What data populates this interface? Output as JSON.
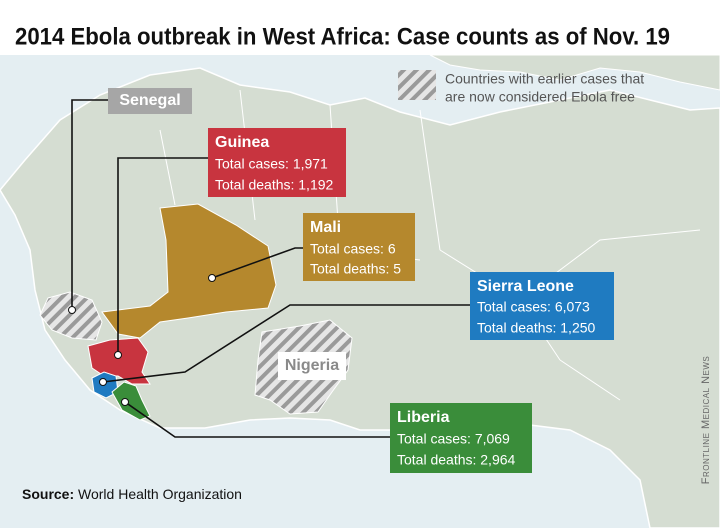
{
  "title": "2014 Ebola outbreak in West Africa: Case counts as of Nov. 19",
  "legend": {
    "lines": [
      "Countries with earlier cases that",
      "are now considered Ebola free"
    ]
  },
  "countries": [
    {
      "name": "Guinea",
      "cases": "Total cases: 1,971",
      "deaths": "Total deaths: 1,192"
    },
    {
      "name": "Mali",
      "cases": "Total cases: 6",
      "deaths": "Total deaths: 5"
    },
    {
      "name": "Sierra Leone",
      "cases": "Total cases: 6,073",
      "deaths": "Total deaths: 1,250"
    },
    {
      "name": "Liberia",
      "cases": "Total cases: 7,069",
      "deaths": "Total deaths: 2,964"
    }
  ],
  "ebola_free": [
    "Senegal",
    "Nigeria"
  ],
  "source": {
    "label": "Source:",
    "text": "World Health Organization"
  },
  "credit": "Frontline Medical News"
}
